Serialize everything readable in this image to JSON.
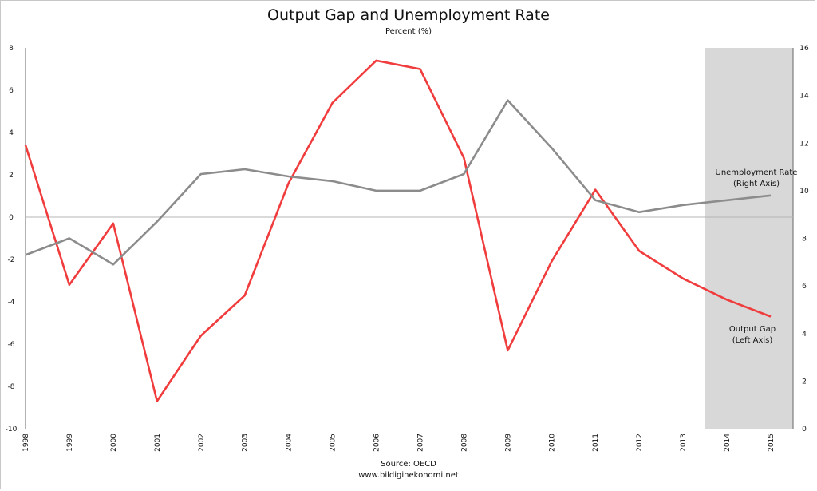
{
  "header": {
    "title": "Output Gap and Unemployment Rate",
    "subtitle": "Percent (%)"
  },
  "footer": {
    "source": "Source: OECD",
    "website": "www.bildiginekonomi.net"
  },
  "colors": {
    "output_gap": "#f03c3c",
    "unemployment": "#8c8c8c",
    "forecast_shade": "#d8d8d8",
    "zero_line": "#b4b4b4"
  },
  "chart_data": {
    "type": "line",
    "title": "Output Gap and Unemployment Rate",
    "subtitle": "Percent (%)",
    "x": [
      "1998",
      "1999",
      "2000",
      "2001",
      "2002",
      "2003",
      "2004",
      "2005",
      "2006",
      "2007",
      "2008",
      "2009",
      "2010",
      "2011",
      "2012",
      "2013",
      "2014",
      "2015"
    ],
    "left_axis": {
      "ylim": [
        -10,
        8
      ],
      "ticks": [
        "8",
        "6",
        "4",
        "2",
        "0",
        "-2",
        "-4",
        "-6",
        "-8",
        "-10"
      ]
    },
    "right_axis": {
      "ylim": [
        0,
        16
      ],
      "ticks": [
        "16",
        "14",
        "12",
        "10",
        "8",
        "6",
        "4",
        "2",
        "0"
      ]
    },
    "shaded_region": {
      "from": "2013.5",
      "to": "2015.5"
    },
    "grid": false,
    "series": [
      {
        "name": "Output Gap",
        "axis": "left",
        "values": [
          3.4,
          -3.2,
          -0.3,
          -8.7,
          -5.6,
          -3.7,
          1.6,
          5.4,
          7.4,
          7.0,
          2.8,
          -6.3,
          -2.1,
          1.3,
          -1.6,
          -2.9,
          -3.9,
          -4.7
        ]
      },
      {
        "name": "Unemployment Rate",
        "axis": "right",
        "values": [
          7.3,
          8.0,
          6.9,
          8.7,
          10.7,
          10.9,
          10.6,
          10.4,
          10.0,
          10.0,
          10.7,
          13.8,
          11.8,
          9.6,
          9.1,
          9.4,
          9.6,
          9.8
        ]
      }
    ],
    "annotations": [
      {
        "line1": "Unemployment Rate",
        "line2": "(Right Axis)"
      },
      {
        "line1": "Output Gap",
        "line2": "(Left Axis)"
      }
    ]
  }
}
